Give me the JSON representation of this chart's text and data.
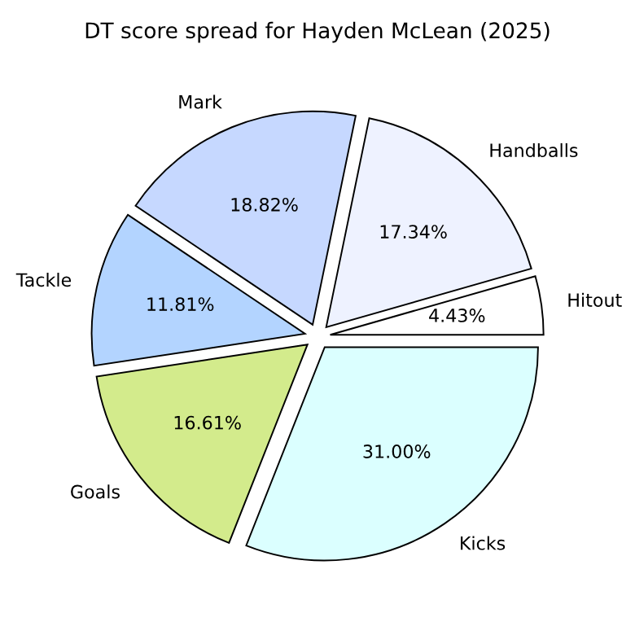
{
  "chart_data": {
    "type": "pie",
    "title": "DT score spread for Hayden McLean (2025)",
    "categories": [
      "Hitout",
      "Handballs",
      "Mark",
      "Tackle",
      "Goals",
      "Kicks"
    ],
    "values": [
      4.43,
      17.34,
      18.82,
      11.81,
      16.61,
      31.0
    ],
    "value_labels": [
      "4.43%",
      "17.34%",
      "18.82%",
      "11.81%",
      "16.61%",
      "31.00%"
    ],
    "colors": [
      "#ffffff",
      "#eef2ff",
      "#c6d8ff",
      "#b3d4ff",
      "#d3eb8c",
      "#dbffff"
    ],
    "legend": false
  }
}
